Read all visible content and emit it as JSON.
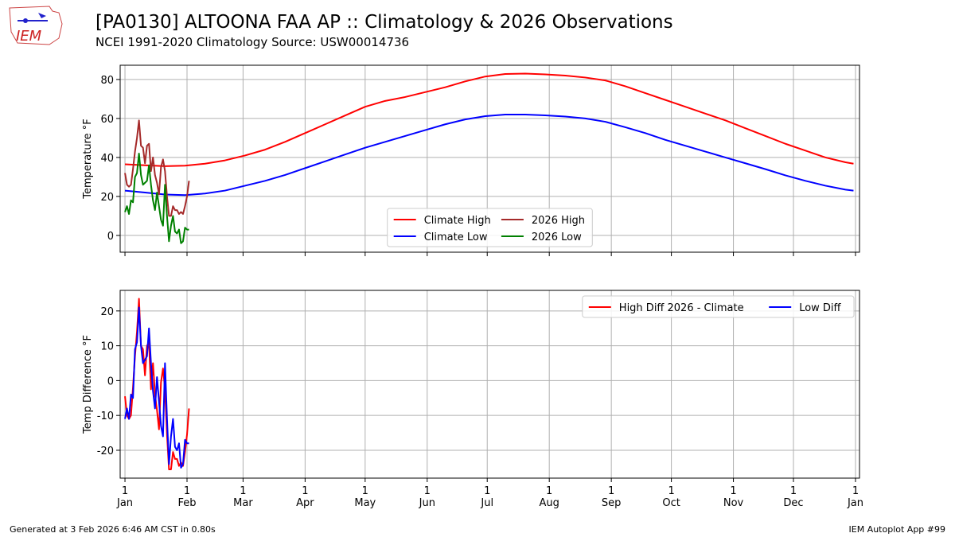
{
  "header": {
    "logo": "IEM",
    "title": "[PA0130] ALTOONA FAA AP :: Climatology & 2026 Observations",
    "subtitle": "NCEI 1991-2020 Climatology Source: USW00014736"
  },
  "footer": {
    "left": "Generated at 3 Feb 2026 6:46 AM CST in 0.80s",
    "right": "IEM Autoplot App #99"
  },
  "chart_data": [
    {
      "type": "line",
      "ylabel": "Temperature °F",
      "xlim": [
        -1.4,
        368
      ],
      "ylim": [
        -8.6,
        87.3
      ],
      "xticks": [
        1,
        32,
        60,
        91,
        121,
        152,
        182,
        213,
        244,
        274,
        305,
        335,
        366
      ],
      "show_xtick_labels": false,
      "yticks": [
        0,
        20,
        40,
        60,
        80
      ],
      "grid": true,
      "legend": "lower center",
      "legend_columns": 2,
      "series": [
        {
          "name": "Climate High",
          "color": "#ff0000",
          "x": [
            1,
            11,
            21,
            31,
            41,
            51,
            61,
            71,
            81,
            91,
            101,
            111,
            121,
            131,
            141,
            151,
            161,
            171,
            181,
            191,
            201,
            211,
            221,
            231,
            241,
            251,
            261,
            271,
            281,
            291,
            301,
            311,
            321,
            331,
            341,
            351,
            361,
            365
          ],
          "values": [
            36.5,
            36,
            35.5,
            35.8,
            36.8,
            38.5,
            41,
            44,
            48,
            52.5,
            57,
            61.5,
            66,
            69,
            71,
            73.5,
            76,
            79,
            81.5,
            82.8,
            83,
            82.6,
            82,
            81,
            79.5,
            76.5,
            73,
            69.5,
            66,
            62.5,
            59,
            55,
            51,
            47,
            43.5,
            40,
            37.5,
            36.8
          ]
        },
        {
          "name": "Climate Low",
          "color": "#0000ff",
          "x": [
            1,
            11,
            21,
            31,
            41,
            51,
            61,
            71,
            81,
            91,
            101,
            111,
            121,
            131,
            141,
            151,
            161,
            171,
            181,
            191,
            201,
            211,
            221,
            231,
            241,
            251,
            261,
            271,
            281,
            291,
            301,
            311,
            321,
            331,
            341,
            351,
            361,
            365
          ],
          "values": [
            23,
            22,
            21,
            20.7,
            21.5,
            23,
            25.5,
            28,
            31,
            34.5,
            38,
            41.5,
            45,
            48,
            51,
            54,
            57,
            59.5,
            61.2,
            62,
            62,
            61.6,
            61,
            60,
            58.3,
            55.5,
            52.5,
            49,
            46,
            43,
            40,
            37,
            34,
            30.8,
            28,
            25.5,
            23.5,
            23
          ]
        },
        {
          "name": "2026 High",
          "color": "#a52a2a",
          "x": [
            1,
            2,
            3,
            4,
            5,
            6,
            7,
            8,
            9,
            10,
            11,
            12,
            13,
            14,
            15,
            16,
            17,
            18,
            19,
            20,
            21,
            22,
            23,
            24,
            25,
            26,
            27,
            28,
            29,
            30,
            31,
            32,
            33
          ],
          "values": [
            32,
            26,
            25,
            26,
            34,
            43,
            50,
            59,
            46,
            45,
            37,
            46,
            47,
            33,
            40,
            31,
            27,
            21,
            35,
            39,
            33,
            20,
            10,
            10,
            15,
            13,
            13,
            11,
            12,
            11,
            15,
            20,
            28
          ]
        },
        {
          "name": "2026 Low",
          "color": "#008000",
          "x": [
            1,
            2,
            3,
            4,
            5,
            6,
            7,
            8,
            9,
            10,
            11,
            12,
            13,
            14,
            15,
            16,
            17,
            18,
            19,
            20,
            21,
            22,
            23,
            24,
            25,
            26,
            27,
            28,
            29,
            30,
            31,
            32,
            33
          ],
          "values": [
            12,
            15,
            11,
            18,
            17,
            30,
            32,
            42,
            31,
            26,
            27,
            28,
            36,
            26,
            18,
            13,
            22,
            15,
            8,
            5,
            26,
            10,
            -3,
            5,
            10,
            2,
            1,
            3,
            -4,
            -3,
            4,
            3,
            3
          ]
        }
      ]
    },
    {
      "type": "line",
      "ylabel": "Temp Difference °F",
      "xlim": [
        -1.4,
        368
      ],
      "ylim": [
        -28,
        25.9
      ],
      "xticks": [
        {
          "value": 1,
          "label": "1\nJan"
        },
        {
          "value": 32,
          "label": "1\nFeb"
        },
        {
          "value": 60,
          "label": "1\nMar"
        },
        {
          "value": 91,
          "label": "1\nApr"
        },
        {
          "value": 121,
          "label": "1\nMay"
        },
        {
          "value": 152,
          "label": "1\nJun"
        },
        {
          "value": 182,
          "label": "1\nJul"
        },
        {
          "value": 213,
          "label": "1\nAug"
        },
        {
          "value": 244,
          "label": "1\nSep"
        },
        {
          "value": 274,
          "label": "1\nOct"
        },
        {
          "value": 305,
          "label": "1\nNov"
        },
        {
          "value": 335,
          "label": "1\nDec"
        },
        {
          "value": 366,
          "label": "1\nJan"
        }
      ],
      "show_xtick_labels": true,
      "yticks": [
        -20,
        -10,
        0,
        10,
        20
      ],
      "grid": true,
      "legend": "upper right",
      "legend_columns": 2,
      "series": [
        {
          "name": "High Diff 2026 - Climate",
          "color": "#ff0000",
          "x": [
            1,
            2,
            3,
            4,
            5,
            6,
            7,
            8,
            9,
            10,
            11,
            12,
            13,
            14,
            15,
            16,
            17,
            18,
            19,
            20,
            21,
            22,
            23,
            24,
            25,
            26,
            27,
            28,
            29,
            30,
            31,
            32,
            33
          ],
          "values": [
            -4.5,
            -10,
            -11,
            -10,
            -2,
            7,
            14,
            23.5,
            10,
            9,
            1.5,
            10,
            11,
            -2.5,
            5,
            -4,
            -8.5,
            -14,
            -0.5,
            3.5,
            -2.5,
            -15.5,
            -25.5,
            -25.5,
            -20.5,
            -22.5,
            -22.5,
            -24.5,
            -23.5,
            -24.5,
            -20.5,
            -15.5,
            -8
          ]
        },
        {
          "name": "Low Diff",
          "color": "#0000ff",
          "x": [
            1,
            2,
            3,
            4,
            5,
            6,
            7,
            8,
            9,
            10,
            11,
            12,
            13,
            14,
            15,
            16,
            17,
            18,
            19,
            20,
            21,
            22,
            23,
            24,
            25,
            26,
            27,
            28,
            29,
            30,
            31,
            32,
            33
          ],
          "values": [
            -11,
            -8,
            -11,
            -4,
            -5,
            9,
            11,
            21,
            10,
            5,
            6,
            7,
            15,
            5,
            -3,
            -8,
            1,
            -6,
            -13,
            -16,
            5,
            -11,
            -24,
            -16,
            -11,
            -19,
            -20,
            -18,
            -25,
            -24,
            -17,
            -18,
            -18
          ]
        }
      ]
    }
  ]
}
